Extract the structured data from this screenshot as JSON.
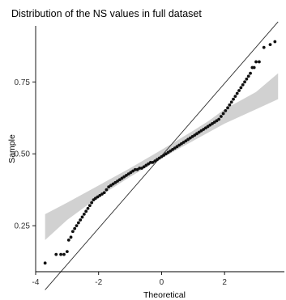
{
  "chart_data": {
    "type": "scatter",
    "title": "Distribution of the NS values in full dataset",
    "xlabel": "Theoretical",
    "ylabel": "Sample",
    "xlim": [
      -4.0,
      3.9
    ],
    "ylim": [
      0.09,
      0.945
    ],
    "x_ticks": [
      {
        "value": -4,
        "label": "-4"
      },
      {
        "value": -2,
        "label": "-2"
      },
      {
        "value": 0,
        "label": "0"
      },
      {
        "value": 2,
        "label": "2"
      }
    ],
    "y_ticks": [
      {
        "value": 0.25,
        "label": "0.25"
      },
      {
        "value": 0.5,
        "label": "0.50"
      },
      {
        "value": 0.75,
        "label": "0.75"
      }
    ],
    "grid": false,
    "reference_line": {
      "slope": 0.126,
      "intercept": 0.493
    },
    "confidence_band": {
      "x": [
        -3.7,
        -3.0,
        -2.5,
        -2.0,
        -1.5,
        -1.0,
        -0.5,
        0.0,
        0.5,
        1.0,
        1.5,
        2.0,
        2.5,
        3.0,
        3.7
      ],
      "lower": [
        0.2,
        0.27,
        0.31,
        0.35,
        0.385,
        0.42,
        0.452,
        0.484,
        0.515,
        0.545,
        0.575,
        0.605,
        0.63,
        0.655,
        0.69
      ],
      "upper": [
        0.29,
        0.33,
        0.36,
        0.39,
        0.42,
        0.45,
        0.482,
        0.514,
        0.547,
        0.58,
        0.615,
        0.655,
        0.685,
        0.715,
        0.78
      ]
    },
    "points": {
      "x": [
        -3.7,
        -3.35,
        -3.2,
        -3.1,
        -3.0,
        -2.95,
        -2.88,
        -2.82,
        -2.76,
        -2.7,
        -2.64,
        -2.58,
        -2.52,
        -2.46,
        -2.4,
        -2.34,
        -2.28,
        -2.22,
        -2.16,
        -2.1,
        -2.03,
        -1.96,
        -1.89,
        -1.82,
        -1.75,
        -1.68,
        -1.61,
        -1.54,
        -1.47,
        -1.4,
        -1.33,
        -1.26,
        -1.19,
        -1.12,
        -1.05,
        -0.98,
        -0.91,
        -0.84,
        -0.77,
        -0.7,
        -0.63,
        -0.56,
        -0.49,
        -0.42,
        -0.35,
        -0.28,
        -0.21,
        -0.14,
        -0.07,
        0.0,
        0.07,
        0.14,
        0.21,
        0.28,
        0.35,
        0.42,
        0.49,
        0.56,
        0.63,
        0.7,
        0.77,
        0.84,
        0.91,
        0.98,
        1.05,
        1.12,
        1.19,
        1.26,
        1.33,
        1.4,
        1.47,
        1.54,
        1.61,
        1.68,
        1.75,
        1.82,
        1.89,
        1.96,
        2.03,
        2.1,
        2.16,
        2.22,
        2.28,
        2.34,
        2.4,
        2.46,
        2.52,
        2.58,
        2.64,
        2.7,
        2.76,
        2.82,
        2.88,
        2.94,
        3.0,
        3.1,
        3.25,
        3.45,
        3.6
      ],
      "y": [
        0.12,
        0.15,
        0.15,
        0.15,
        0.16,
        0.2,
        0.21,
        0.23,
        0.24,
        0.25,
        0.26,
        0.27,
        0.28,
        0.29,
        0.3,
        0.31,
        0.32,
        0.33,
        0.34,
        0.345,
        0.35,
        0.355,
        0.36,
        0.365,
        0.375,
        0.385,
        0.39,
        0.395,
        0.4,
        0.405,
        0.41,
        0.415,
        0.42,
        0.425,
        0.43,
        0.435,
        0.44,
        0.445,
        0.445,
        0.45,
        0.45,
        0.455,
        0.46,
        0.465,
        0.47,
        0.47,
        0.475,
        0.48,
        0.485,
        0.49,
        0.495,
        0.5,
        0.505,
        0.51,
        0.515,
        0.52,
        0.525,
        0.53,
        0.535,
        0.54,
        0.545,
        0.55,
        0.555,
        0.56,
        0.565,
        0.57,
        0.575,
        0.58,
        0.585,
        0.59,
        0.595,
        0.6,
        0.605,
        0.61,
        0.615,
        0.62,
        0.63,
        0.64,
        0.65,
        0.66,
        0.67,
        0.68,
        0.69,
        0.7,
        0.71,
        0.72,
        0.73,
        0.74,
        0.75,
        0.76,
        0.77,
        0.78,
        0.8,
        0.8,
        0.82,
        0.82,
        0.87,
        0.88,
        0.89
      ]
    },
    "colors": {
      "points": "#111111",
      "line": "#2f2f2f",
      "band": "#cfcfcf",
      "axis": "#000000"
    }
  }
}
